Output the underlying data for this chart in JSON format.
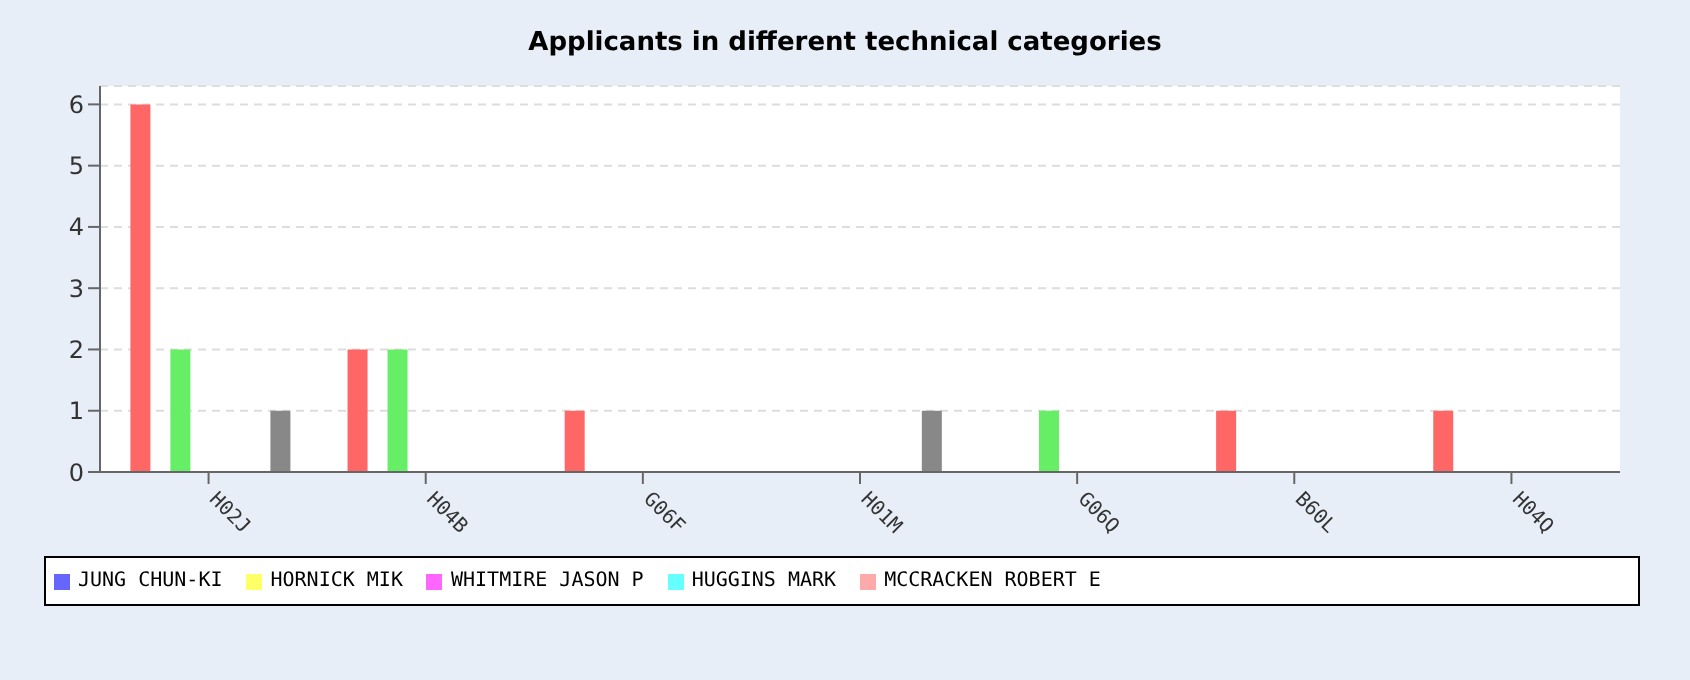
{
  "chart_data": {
    "type": "bar",
    "title": "Applicants in different technical categories",
    "categories": [
      "H02J",
      "H04B",
      "G06F",
      "H01M",
      "G06Q",
      "B60L",
      "H04Q"
    ],
    "series": [
      {
        "color": "#ff6666",
        "values": [
          6,
          2,
          1,
          0,
          0,
          1,
          1
        ]
      },
      {
        "name": "JUNG CHUN-KI",
        "color": "#6666ff",
        "values": [
          0,
          0,
          0,
          0,
          0,
          0,
          0
        ]
      },
      {
        "color": "#66ee66",
        "values": [
          2,
          2,
          0,
          0,
          1,
          0,
          0
        ]
      },
      {
        "name": "HORNICK MIK",
        "color": "#ffff66",
        "values": [
          0,
          0,
          0,
          0,
          0,
          0,
          0
        ]
      },
      {
        "name": "WHITMIRE JASON P",
        "color": "#ff66ff",
        "values": [
          0,
          0,
          0,
          0,
          0,
          0,
          0
        ]
      },
      {
        "name": "HUGGINS MARK",
        "color": "#66ffff",
        "values": [
          0,
          0,
          0,
          0,
          0,
          0,
          0
        ]
      },
      {
        "name": "MCCRACKEN ROBERT E",
        "color": "#ffaaaa",
        "values": [
          0,
          0,
          0,
          0,
          0,
          0,
          0
        ]
      },
      {
        "color": "#888888",
        "values": [
          1,
          0,
          0,
          1,
          0,
          0,
          0
        ]
      }
    ],
    "ylim": [
      0,
      6.3
    ],
    "yticks": [
      0,
      1,
      2,
      3,
      4,
      5,
      6
    ],
    "grid": "y",
    "legend": "bottom"
  }
}
